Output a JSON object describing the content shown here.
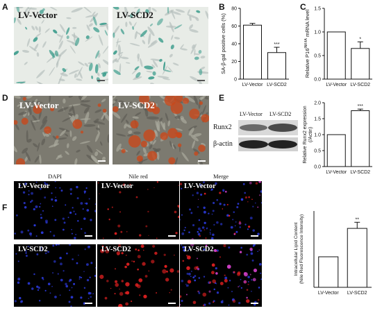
{
  "panels": {
    "A": {
      "label": "A",
      "images": [
        {
          "text": "LV-Vector",
          "palette": "sagal"
        },
        {
          "text": "LV-SCD2",
          "palette": "sagal"
        }
      ]
    },
    "D": {
      "label": "D",
      "images": [
        {
          "text": "LV-Vector",
          "palette": "alizarin"
        },
        {
          "text": "LV-SCD2",
          "palette": "alizarin"
        }
      ]
    },
    "E": {
      "label": "E",
      "lanes": [
        "LV-Vector",
        "LV-SCD2"
      ],
      "bands": [
        "Runx2",
        "β-actin"
      ]
    },
    "F": {
      "label": "F",
      "columns": [
        "DAPI",
        "Nile red",
        "Merge"
      ],
      "rows": [
        "LV-Vector",
        "LV-SCD2"
      ]
    },
    "B": {
      "label": "B"
    },
    "C": {
      "label": "C"
    }
  },
  "colors": {
    "sagal_bg": "#e8ece7",
    "sagal_cell": "#3f9e8e",
    "alizarin_bg": "#7c7a70",
    "alizarin_nodule": "#c8481c",
    "dapi": "#2b39d8",
    "nilered": "#e02020",
    "bar_fill": "#ffffff",
    "bar_stroke": "#111111"
  },
  "chart_data": [
    {
      "panel": "B",
      "type": "bar",
      "categories": [
        "LV-Vector",
        "LV-SCD2"
      ],
      "values": [
        61,
        30
      ],
      "errors": [
        2,
        6
      ],
      "significance": [
        "",
        "***"
      ],
      "ylabel": "SA-β-gal positive cells (%)",
      "ylim": [
        0,
        80
      ],
      "yticks": [
        0,
        20,
        40,
        60,
        80
      ]
    },
    {
      "panel": "C",
      "type": "bar",
      "categories": [
        "LV-Vector",
        "LV-SCD2"
      ],
      "values": [
        1.0,
        0.65
      ],
      "errors": [
        0,
        0.14
      ],
      "significance": [
        "",
        "*"
      ],
      "ylabel": "Relative P16INK4A mRNA level",
      "ylim": [
        0,
        1.5
      ],
      "yticks": [
        "0.0",
        "0.5",
        "1.0",
        "1.5"
      ]
    },
    {
      "panel": "E",
      "type": "bar",
      "categories": [
        "LV-Vector",
        "LV-SCD2"
      ],
      "values": [
        1.0,
        1.75
      ],
      "errors": [
        0,
        0.05
      ],
      "significance": [
        "",
        "***"
      ],
      "ylabel": "Relative Runx2 expression (/Actin)",
      "ylim": [
        0,
        2.0
      ],
      "yticks": [
        "0.0",
        "0.5",
        "1.0",
        "1.5",
        "2.0"
      ]
    },
    {
      "panel": "F",
      "type": "bar",
      "categories": [
        "LV-Vector",
        "LV-SCD2"
      ],
      "values": [
        1.0,
        1.93
      ],
      "errors": [
        0,
        0.2
      ],
      "significance": [
        "",
        "**"
      ],
      "ylabel": "Intracellular Lipid Content (Nile Red Fluorescence Intensity)",
      "ylim": [
        0,
        2.5
      ],
      "yticks": []
    }
  ]
}
